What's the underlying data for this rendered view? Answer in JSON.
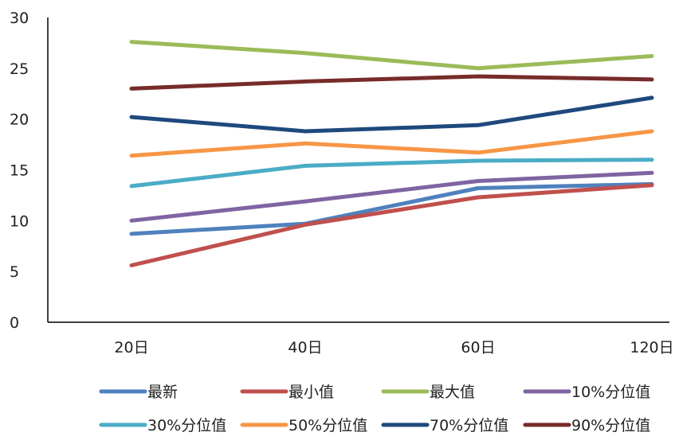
{
  "chart_data": {
    "type": "line",
    "categories": [
      "20日",
      "40日",
      "60日",
      "120日"
    ],
    "ylim": [
      0,
      30
    ],
    "yticks": [
      0,
      5,
      10,
      15,
      20,
      25,
      30
    ],
    "grid": false,
    "legend_position": "bottom",
    "series": [
      {
        "name": "最新",
        "color": "#4F81BD",
        "values": [
          8.7,
          9.7,
          13.2,
          13.6
        ]
      },
      {
        "name": "最小值",
        "color": "#C0504D",
        "values": [
          5.6,
          9.6,
          12.3,
          13.5
        ]
      },
      {
        "name": "最大值",
        "color": "#9BBB59",
        "values": [
          27.6,
          26.5,
          25.0,
          26.2
        ]
      },
      {
        "name": "10%分位值",
        "color": "#8064A2",
        "values": [
          10.0,
          11.9,
          13.9,
          14.7
        ]
      },
      {
        "name": "30%分位值",
        "color": "#4BACC6",
        "values": [
          13.4,
          15.4,
          15.9,
          16.0
        ]
      },
      {
        "name": "50%分位值",
        "color": "#F79646",
        "values": [
          16.4,
          17.6,
          16.7,
          18.8
        ]
      },
      {
        "name": "70%分位值",
        "color": "#1F497D",
        "values": [
          20.2,
          18.8,
          19.4,
          22.1
        ]
      },
      {
        "name": "90%分位值",
        "color": "#772C2A",
        "values": [
          23.0,
          23.7,
          24.2,
          23.9
        ]
      }
    ]
  }
}
